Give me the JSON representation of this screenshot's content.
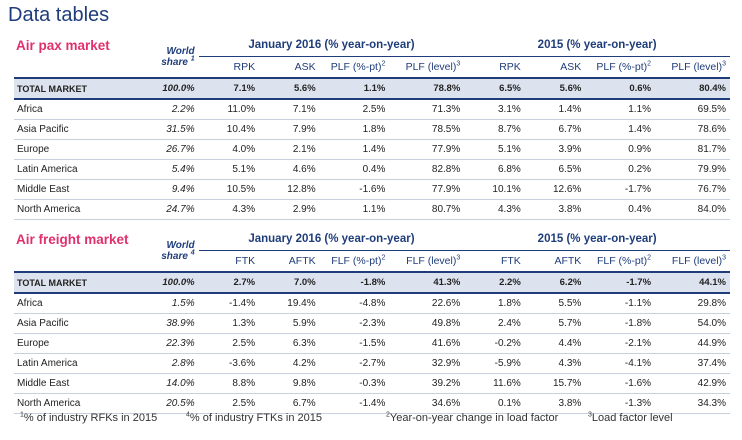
{
  "title": "Data tables",
  "pax": {
    "market_label": "Air pax market",
    "world_label": "World",
    "share_label": "share",
    "share_sup": "1",
    "group1": "January 2016 (% year-on-year)",
    "group2": "2015 (% year-on-year)",
    "cols": [
      "RPK",
      "ASK",
      "PLF (%-pt)",
      "PLF (level)",
      "RPK",
      "ASK",
      "PLF (%-pt)",
      "PLF (level)"
    ],
    "col_sups": [
      "",
      "",
      "2",
      "3",
      "",
      "",
      "2",
      "3"
    ],
    "total": [
      "TOTAL MARKET",
      "100.0%",
      "7.1%",
      "5.6%",
      "1.1%",
      "78.8%",
      "6.5%",
      "5.6%",
      "0.6%",
      "80.4%"
    ],
    "rows": [
      [
        "Africa",
        "2.2%",
        "11.0%",
        "7.1%",
        "2.5%",
        "71.3%",
        "3.1%",
        "1.4%",
        "1.1%",
        "69.5%"
      ],
      [
        "Asia Pacific",
        "31.5%",
        "10.4%",
        "7.9%",
        "1.8%",
        "78.5%",
        "8.7%",
        "6.7%",
        "1.4%",
        "78.6%"
      ],
      [
        "Europe",
        "26.7%",
        "4.0%",
        "2.1%",
        "1.4%",
        "77.9%",
        "5.1%",
        "3.9%",
        "0.9%",
        "81.7%"
      ],
      [
        "Latin America",
        "5.4%",
        "5.1%",
        "4.6%",
        "0.4%",
        "82.8%",
        "6.8%",
        "6.5%",
        "0.2%",
        "79.9%"
      ],
      [
        "Middle East",
        "9.4%",
        "10.5%",
        "12.8%",
        "-1.6%",
        "77.9%",
        "10.1%",
        "12.6%",
        "-1.7%",
        "76.7%"
      ],
      [
        "North America",
        "24.7%",
        "4.3%",
        "2.9%",
        "1.1%",
        "80.7%",
        "4.3%",
        "3.8%",
        "0.4%",
        "84.0%"
      ]
    ]
  },
  "freight": {
    "market_label": "Air freight market",
    "world_label": "World",
    "share_label": "share",
    "share_sup": "4",
    "group1": "January 2016 (% year-on-year)",
    "group2": "2015 (% year-on-year)",
    "cols": [
      "FTK",
      "AFTK",
      "FLF (%-pt)",
      "FLF (level)",
      "FTK",
      "AFTK",
      "FLF (%-pt)",
      "FLF (level)"
    ],
    "col_sups": [
      "",
      "",
      "2",
      "3",
      "",
      "",
      "2",
      "3"
    ],
    "total": [
      "TOTAL MARKET",
      "100.0%",
      "2.7%",
      "7.0%",
      "-1.8%",
      "41.3%",
      "2.2%",
      "6.2%",
      "-1.7%",
      "44.1%"
    ],
    "rows": [
      [
        "Africa",
        "1.5%",
        "-1.4%",
        "19.4%",
        "-4.8%",
        "22.6%",
        "1.8%",
        "5.5%",
        "-1.1%",
        "29.8%"
      ],
      [
        "Asia Pacific",
        "38.9%",
        "1.3%",
        "5.9%",
        "-2.3%",
        "49.8%",
        "2.4%",
        "5.7%",
        "-1.8%",
        "54.0%"
      ],
      [
        "Europe",
        "22.3%",
        "2.5%",
        "6.3%",
        "-1.5%",
        "41.6%",
        "-0.2%",
        "4.4%",
        "-2.1%",
        "44.9%"
      ],
      [
        "Latin America",
        "2.8%",
        "-3.6%",
        "4.2%",
        "-2.7%",
        "32.9%",
        "-5.9%",
        "4.3%",
        "-4.1%",
        "37.4%"
      ],
      [
        "Middle East",
        "14.0%",
        "8.8%",
        "9.8%",
        "-0.3%",
        "39.2%",
        "11.6%",
        "15.7%",
        "-1.6%",
        "42.9%"
      ],
      [
        "North America",
        "20.5%",
        "2.5%",
        "6.7%",
        "-1.4%",
        "34.6%",
        "0.1%",
        "3.8%",
        "-1.3%",
        "34.3%"
      ]
    ]
  },
  "footnotes": [
    {
      "sup": "1",
      "text": "% of industry RFKs in 2015"
    },
    {
      "sup": "4",
      "text": "% of industry FTKs in 2015"
    },
    {
      "sup": "2",
      "text": "Year-on-year change in load factor"
    },
    {
      "sup": "3",
      "text": "Load factor level"
    }
  ]
}
